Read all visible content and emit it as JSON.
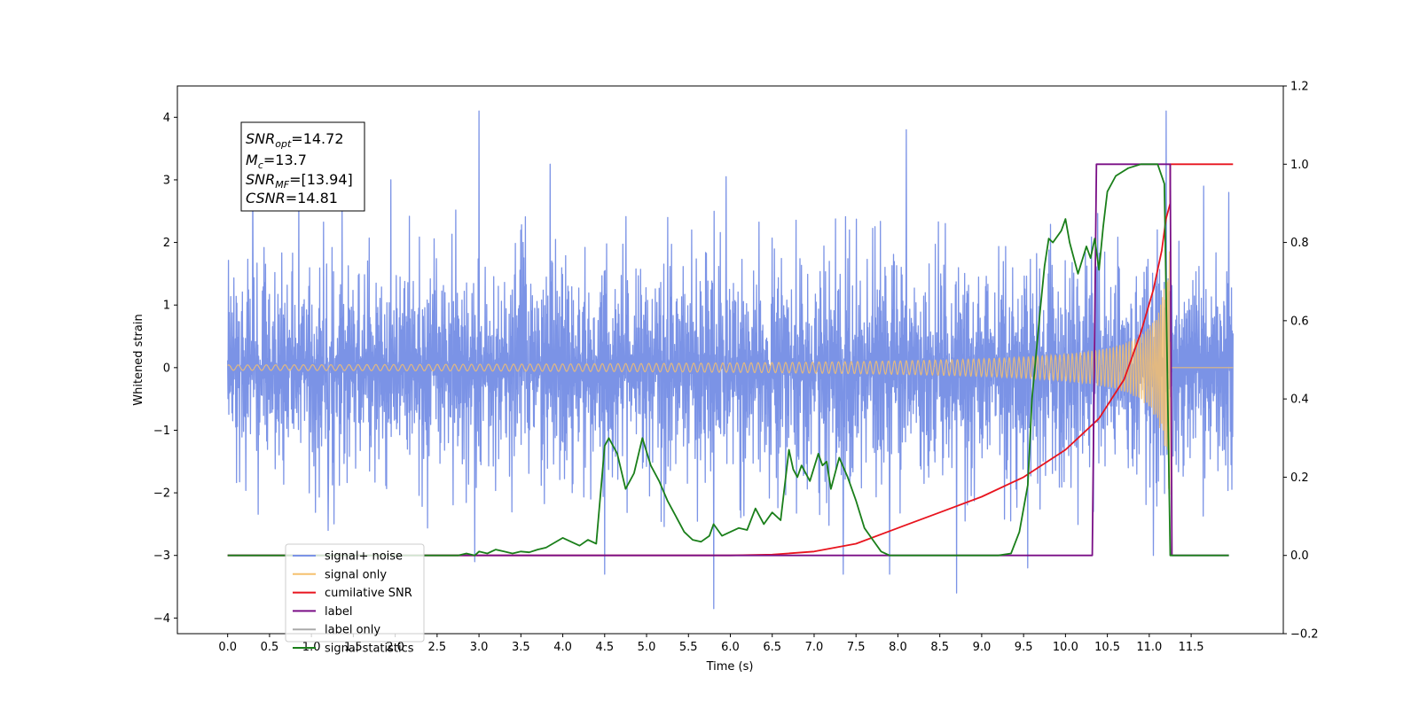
{
  "chart_data": {
    "type": "line",
    "title": "",
    "xlabel": "Time (s)",
    "ylabel": "Whitened strain",
    "xlim": [
      -0.6,
      12.6
    ],
    "ylim": [
      -4.25,
      4.5
    ],
    "y2lim": [
      -0.2,
      1.2
    ],
    "x_ticks": [
      0.0,
      0.5,
      1.0,
      1.5,
      2.0,
      2.5,
      3.0,
      3.5,
      4.0,
      4.5,
      5.0,
      5.5,
      6.0,
      6.5,
      7.0,
      7.5,
      8.0,
      8.5,
      9.0,
      9.5,
      10.0,
      10.5,
      11.0,
      11.5
    ],
    "x_tick_labels": [
      "0.0",
      "0.5",
      "1.0",
      "1.5",
      "2.0",
      "2.5",
      "3.0",
      "3.5",
      "4.0",
      "4.5",
      "5.0",
      "5.5",
      "6.0",
      "6.5",
      "7.0",
      "7.5",
      "8.0",
      "8.5",
      "9.0",
      "9.5",
      "10.0",
      "10.5",
      "11.0",
      "11.5"
    ],
    "y_ticks": [
      4,
      3,
      2,
      1,
      0,
      -1,
      -2,
      -3,
      -4
    ],
    "y_tick_labels": [
      "4",
      "3",
      "2",
      "1",
      "0",
      "−1",
      "−2",
      "−3",
      "−4"
    ],
    "y2_ticks": [
      1.2,
      1.0,
      0.8,
      0.6,
      0.4,
      0.2,
      0.0,
      -0.2
    ],
    "y2_tick_labels": [
      "1.2",
      "1.0",
      "0.8",
      "0.6",
      "0.4",
      "0.2",
      "0.0",
      "−0.2"
    ],
    "grid": false,
    "legend_placement": "lower-left",
    "annotation": {
      "snr_opt": {
        "base": "SNR",
        "sub": "opt",
        "value": "=14.72"
      },
      "mc": {
        "base": "M",
        "sub": "c",
        "value": "=13.7"
      },
      "snr_mf": {
        "base": "SNR",
        "sub": "MF",
        "value": "=[13.94]"
      },
      "csnr": {
        "base": "CSNR",
        "sub": "",
        "value": "=14.81"
      }
    },
    "series": [
      {
        "name": "signal+ noise",
        "color": "#7b93e6",
        "axis": "left",
        "kind": "noise",
        "x_range": [
          0.0,
          12.0
        ],
        "amplitude": 0.8,
        "envelope": [
          2.3,
          -2.3
        ],
        "spikes": [
          {
            "x": 0.3,
            "y": 3.1
          },
          {
            "x": 0.85,
            "y": 2.85
          },
          {
            "x": 1.2,
            "y": -2.6
          },
          {
            "x": 1.95,
            "y": 3.0
          },
          {
            "x": 3.0,
            "y": 4.1
          },
          {
            "x": 2.95,
            "y": -3.1
          },
          {
            "x": 3.85,
            "y": 3.25
          },
          {
            "x": 4.5,
            "y": -3.3
          },
          {
            "x": 5.8,
            "y": -3.85
          },
          {
            "x": 5.95,
            "y": 3.05
          },
          {
            "x": 7.35,
            "y": -3.3
          },
          {
            "x": 8.1,
            "y": 3.8
          },
          {
            "x": 8.7,
            "y": -3.6
          },
          {
            "x": 7.9,
            "y": -3.3
          },
          {
            "x": 9.55,
            "y": -3.2
          },
          {
            "x": 11.2,
            "y": 4.1
          },
          {
            "x": 11.05,
            "y": -3.0
          },
          {
            "x": 11.65,
            "y": 2.9
          },
          {
            "x": 11.95,
            "y": 2.8
          }
        ]
      },
      {
        "name": "signal only",
        "color": "#f5c06e",
        "axis": "left",
        "kind": "chirp",
        "x_range": [
          0.0,
          12.0
        ],
        "merger_time": 11.25,
        "peak_amplitude": 2.5
      },
      {
        "name": "cumilative SNR",
        "color": "#e8141e",
        "axis": "right",
        "x": [
          0.0,
          6.0,
          6.5,
          7.0,
          7.5,
          8.0,
          8.5,
          9.0,
          9.5,
          10.0,
          10.4,
          10.7,
          10.9,
          11.05,
          11.15,
          11.2,
          11.25,
          11.25,
          12.0
        ],
        "y": [
          0.0,
          0.0,
          0.002,
          0.01,
          0.03,
          0.07,
          0.11,
          0.15,
          0.2,
          0.27,
          0.35,
          0.45,
          0.57,
          0.68,
          0.78,
          0.86,
          0.9,
          1.0,
          1.0
        ]
      },
      {
        "name": "label",
        "color": "#7a0f86",
        "axis": "right",
        "x": [
          0.0,
          10.32,
          10.37,
          11.25,
          11.27,
          11.95
        ],
        "y": [
          0.0,
          0.0,
          1.0,
          1.0,
          0.0,
          0.0
        ]
      },
      {
        "name": "label only",
        "color": "#aaaaaa",
        "axis": "right",
        "hidden_in_plot": true
      },
      {
        "name": "signal statistics",
        "color": "#1a7f1a",
        "axis": "right",
        "x": [
          0.0,
          2.75,
          2.85,
          2.95,
          3.0,
          3.1,
          3.2,
          3.3,
          3.4,
          3.5,
          3.6,
          3.7,
          3.8,
          4.0,
          4.1,
          4.2,
          4.3,
          4.4,
          4.5,
          4.55,
          4.65,
          4.75,
          4.85,
          4.95,
          5.05,
          5.15,
          5.25,
          5.35,
          5.45,
          5.55,
          5.65,
          5.75,
          5.8,
          5.9,
          6.0,
          6.1,
          6.2,
          6.3,
          6.4,
          6.5,
          6.6,
          6.7,
          6.75,
          6.8,
          6.85,
          6.95,
          7.05,
          7.1,
          7.15,
          7.2,
          7.3,
          7.4,
          7.5,
          7.6,
          7.7,
          7.8,
          7.9,
          8.0,
          9.2,
          9.35,
          9.45,
          9.55,
          9.6,
          9.7,
          9.75,
          9.8,
          9.85,
          9.95,
          10.0,
          10.05,
          10.15,
          10.25,
          10.3,
          10.35,
          10.4,
          10.45,
          10.5,
          10.6,
          10.75,
          10.9,
          11.1,
          11.18,
          11.25,
          11.3,
          11.95
        ],
        "y": [
          0.0,
          0.0,
          0.005,
          0.0,
          0.01,
          0.005,
          0.015,
          0.01,
          0.005,
          0.01,
          0.008,
          0.015,
          0.02,
          0.045,
          0.035,
          0.025,
          0.04,
          0.03,
          0.28,
          0.3,
          0.26,
          0.17,
          0.21,
          0.3,
          0.23,
          0.19,
          0.14,
          0.1,
          0.06,
          0.04,
          0.035,
          0.05,
          0.08,
          0.05,
          0.06,
          0.07,
          0.065,
          0.12,
          0.08,
          0.11,
          0.09,
          0.27,
          0.22,
          0.2,
          0.23,
          0.19,
          0.26,
          0.23,
          0.24,
          0.17,
          0.25,
          0.2,
          0.14,
          0.07,
          0.04,
          0.01,
          0.0,
          0.0,
          0.0,
          0.005,
          0.06,
          0.18,
          0.4,
          0.63,
          0.74,
          0.81,
          0.8,
          0.83,
          0.86,
          0.8,
          0.72,
          0.79,
          0.76,
          0.81,
          0.73,
          0.84,
          0.93,
          0.97,
          0.99,
          1.0,
          1.0,
          0.95,
          0.0,
          0.0,
          0.0
        ]
      }
    ]
  }
}
